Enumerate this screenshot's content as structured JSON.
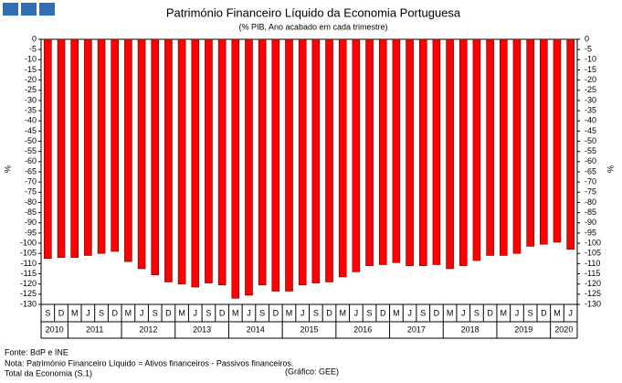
{
  "chart_data": {
    "type": "bar",
    "title": "Património Financeiro Líquido da Economia Portuguesa",
    "subtitle": "(% PIB, Ano acabado em cada trimestre)",
    "y_label": "%",
    "y2_label": "%",
    "categories": [
      "S",
      "D",
      "M",
      "J",
      "S",
      "D",
      "M",
      "J",
      "S",
      "D",
      "M",
      "J",
      "S",
      "D",
      "M",
      "J",
      "S",
      "D",
      "M",
      "J",
      "S",
      "D",
      "M",
      "J",
      "S",
      "D",
      "M",
      "J",
      "S",
      "D",
      "M",
      "J",
      "S",
      "D",
      "M",
      "J",
      "S",
      "D",
      "M",
      "J"
    ],
    "year_labels": [
      "2010",
      null,
      "2011",
      null,
      null,
      null,
      "2012",
      null,
      null,
      null,
      "2013",
      null,
      null,
      null,
      "2014",
      null,
      null,
      null,
      "2015",
      null,
      null,
      null,
      "2016",
      null,
      null,
      null,
      "2017",
      null,
      null,
      null,
      "2018",
      null,
      null,
      null,
      "2019",
      null,
      null,
      null,
      "2020",
      null
    ],
    "series": [
      {
        "name": "Património Financeiro Líquido",
        "color": "#ff0000",
        "values": [
          -107.5,
          -107,
          -107,
          -106,
          -105,
          -104,
          -109,
          -112.5,
          -115.5,
          -119,
          -120,
          -121.5,
          -119.5,
          -120.5,
          -127,
          -125.5,
          -120.5,
          -123.5,
          -123.5,
          -120.5,
          -119.5,
          -119,
          -116.5,
          -114,
          -111,
          -110.5,
          -109.5,
          -111,
          -111,
          -110.5,
          -112.5,
          -111,
          -108.5,
          -106,
          -106,
          -105,
          -101.5,
          -100.5,
          -99.5,
          -103
        ]
      }
    ],
    "ylim": [
      -130,
      0
    ],
    "yticks": [
      0,
      -5,
      -10,
      -15,
      -20,
      -25,
      -30,
      -35,
      -40,
      -45,
      -50,
      -55,
      -60,
      -65,
      -70,
      -75,
      -80,
      -85,
      -90,
      -95,
      -100,
      -105,
      -110,
      -115,
      -120,
      -125,
      -130
    ],
    "y2lim": [
      -130,
      0
    ],
    "y2ticks": [
      0,
      -5,
      -10,
      -15,
      -20,
      -25,
      -30,
      -35,
      -40,
      -45,
      -50,
      -55,
      -60,
      -65,
      -70,
      -75,
      -80,
      -85,
      -90,
      -95,
      -100,
      -105,
      -110,
      -115,
      -120,
      -125,
      -130
    ],
    "grid": false,
    "notes": [
      "Fonte: BdP e INE",
      "Nota: Património Financeiro Líquido = Ativos financeiros - Passivos financeiros.",
      "Total da Economia (S.1)"
    ],
    "credit": "(Gráfico: GEE)"
  }
}
